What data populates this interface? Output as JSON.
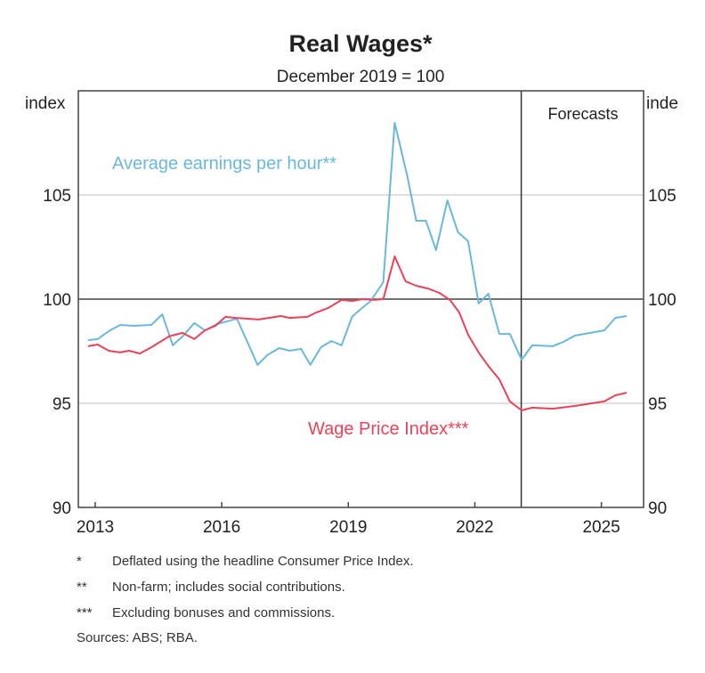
{
  "chart_data": {
    "type": "line",
    "title": "Real Wages*",
    "subtitle": "December 2019 = 100",
    "ylabel_left": "index",
    "ylabel_right": "inde",
    "xlim": [
      2012.6,
      2026.0
    ],
    "ylim": [
      90,
      110
    ],
    "yticks": [
      90,
      95,
      100,
      105
    ],
    "xticks": [
      2013,
      2016,
      2019,
      2022,
      2025
    ],
    "reference_line": 100,
    "forecast_start": 2023.1,
    "forecast_label": "Forecasts",
    "grid": true,
    "series": [
      {
        "name": "Average earnings per hour**",
        "color": "#6ab8dc",
        "x": [
          2012.83,
          2013.06,
          2013.32,
          2013.59,
          2013.91,
          2014.33,
          2014.59,
          2014.84,
          2015.07,
          2015.35,
          2015.6,
          2015.88,
          2016.36,
          2016.85,
          2017.08,
          2017.36,
          2017.61,
          2017.88,
          2018.1,
          2018.35,
          2018.6,
          2018.84,
          2019.09,
          2019.3,
          2019.53,
          2019.83,
          2020.1,
          2020.4,
          2020.61,
          2020.84,
          2021.08,
          2021.35,
          2021.6,
          2021.84,
          2022.09,
          2022.32,
          2022.58,
          2022.83,
          2023.11,
          2023.36,
          2023.85,
          2024.1,
          2024.37,
          2025.07,
          2025.33,
          2025.6
        ],
        "y": [
          98.03,
          98.08,
          98.46,
          98.76,
          98.72,
          98.76,
          99.27,
          97.78,
          98.21,
          98.85,
          98.5,
          98.8,
          99.06,
          96.84,
          97.31,
          97.65,
          97.52,
          97.61,
          96.84,
          97.69,
          97.99,
          97.78,
          99.15,
          99.53,
          99.91,
          100.81,
          108.46,
          105.9,
          103.76,
          103.76,
          102.35,
          104.74,
          103.21,
          102.78,
          99.79,
          100.26,
          98.33,
          98.33,
          97.09,
          97.78,
          97.74,
          97.95,
          98.25,
          98.5,
          99.1,
          99.19
        ]
      },
      {
        "name": "Wage Price Index***",
        "color": "#e8435a",
        "x": [
          2012.83,
          2013.06,
          2013.32,
          2013.59,
          2013.8,
          2014.06,
          2014.33,
          2014.75,
          2015.07,
          2015.35,
          2015.6,
          2015.85,
          2016.09,
          2016.34,
          2016.87,
          2017.4,
          2017.61,
          2018.03,
          2018.24,
          2018.52,
          2018.84,
          2019.09,
          2019.34,
          2019.62,
          2019.83,
          2020.1,
          2020.36,
          2020.61,
          2020.89,
          2021.16,
          2021.41,
          2021.63,
          2021.84,
          2022.09,
          2022.32,
          2022.58,
          2022.83,
          2023.11,
          2023.36,
          2023.85,
          2024.37,
          2025.07,
          2025.33,
          2025.6
        ],
        "y": [
          97.74,
          97.82,
          97.52,
          97.44,
          97.52,
          97.39,
          97.69,
          98.21,
          98.38,
          98.08,
          98.5,
          98.72,
          99.15,
          99.1,
          99.02,
          99.19,
          99.1,
          99.15,
          99.36,
          99.57,
          99.96,
          99.91,
          100.0,
          99.96,
          100.0,
          102.05,
          100.85,
          100.64,
          100.51,
          100.3,
          99.96,
          99.36,
          98.29,
          97.44,
          96.79,
          96.15,
          95.09,
          94.66,
          94.79,
          94.74,
          94.87,
          95.09,
          95.38,
          95.51
        ]
      }
    ]
  },
  "footnotes": [
    {
      "mark": "*",
      "text": "Deflated using the headline Consumer Price Index."
    },
    {
      "mark": "**",
      "text": "Non-farm; includes social contributions."
    },
    {
      "mark": "***",
      "text": "Excluding bonuses and commissions."
    }
  ],
  "sources": "Sources: ABS; RBA."
}
